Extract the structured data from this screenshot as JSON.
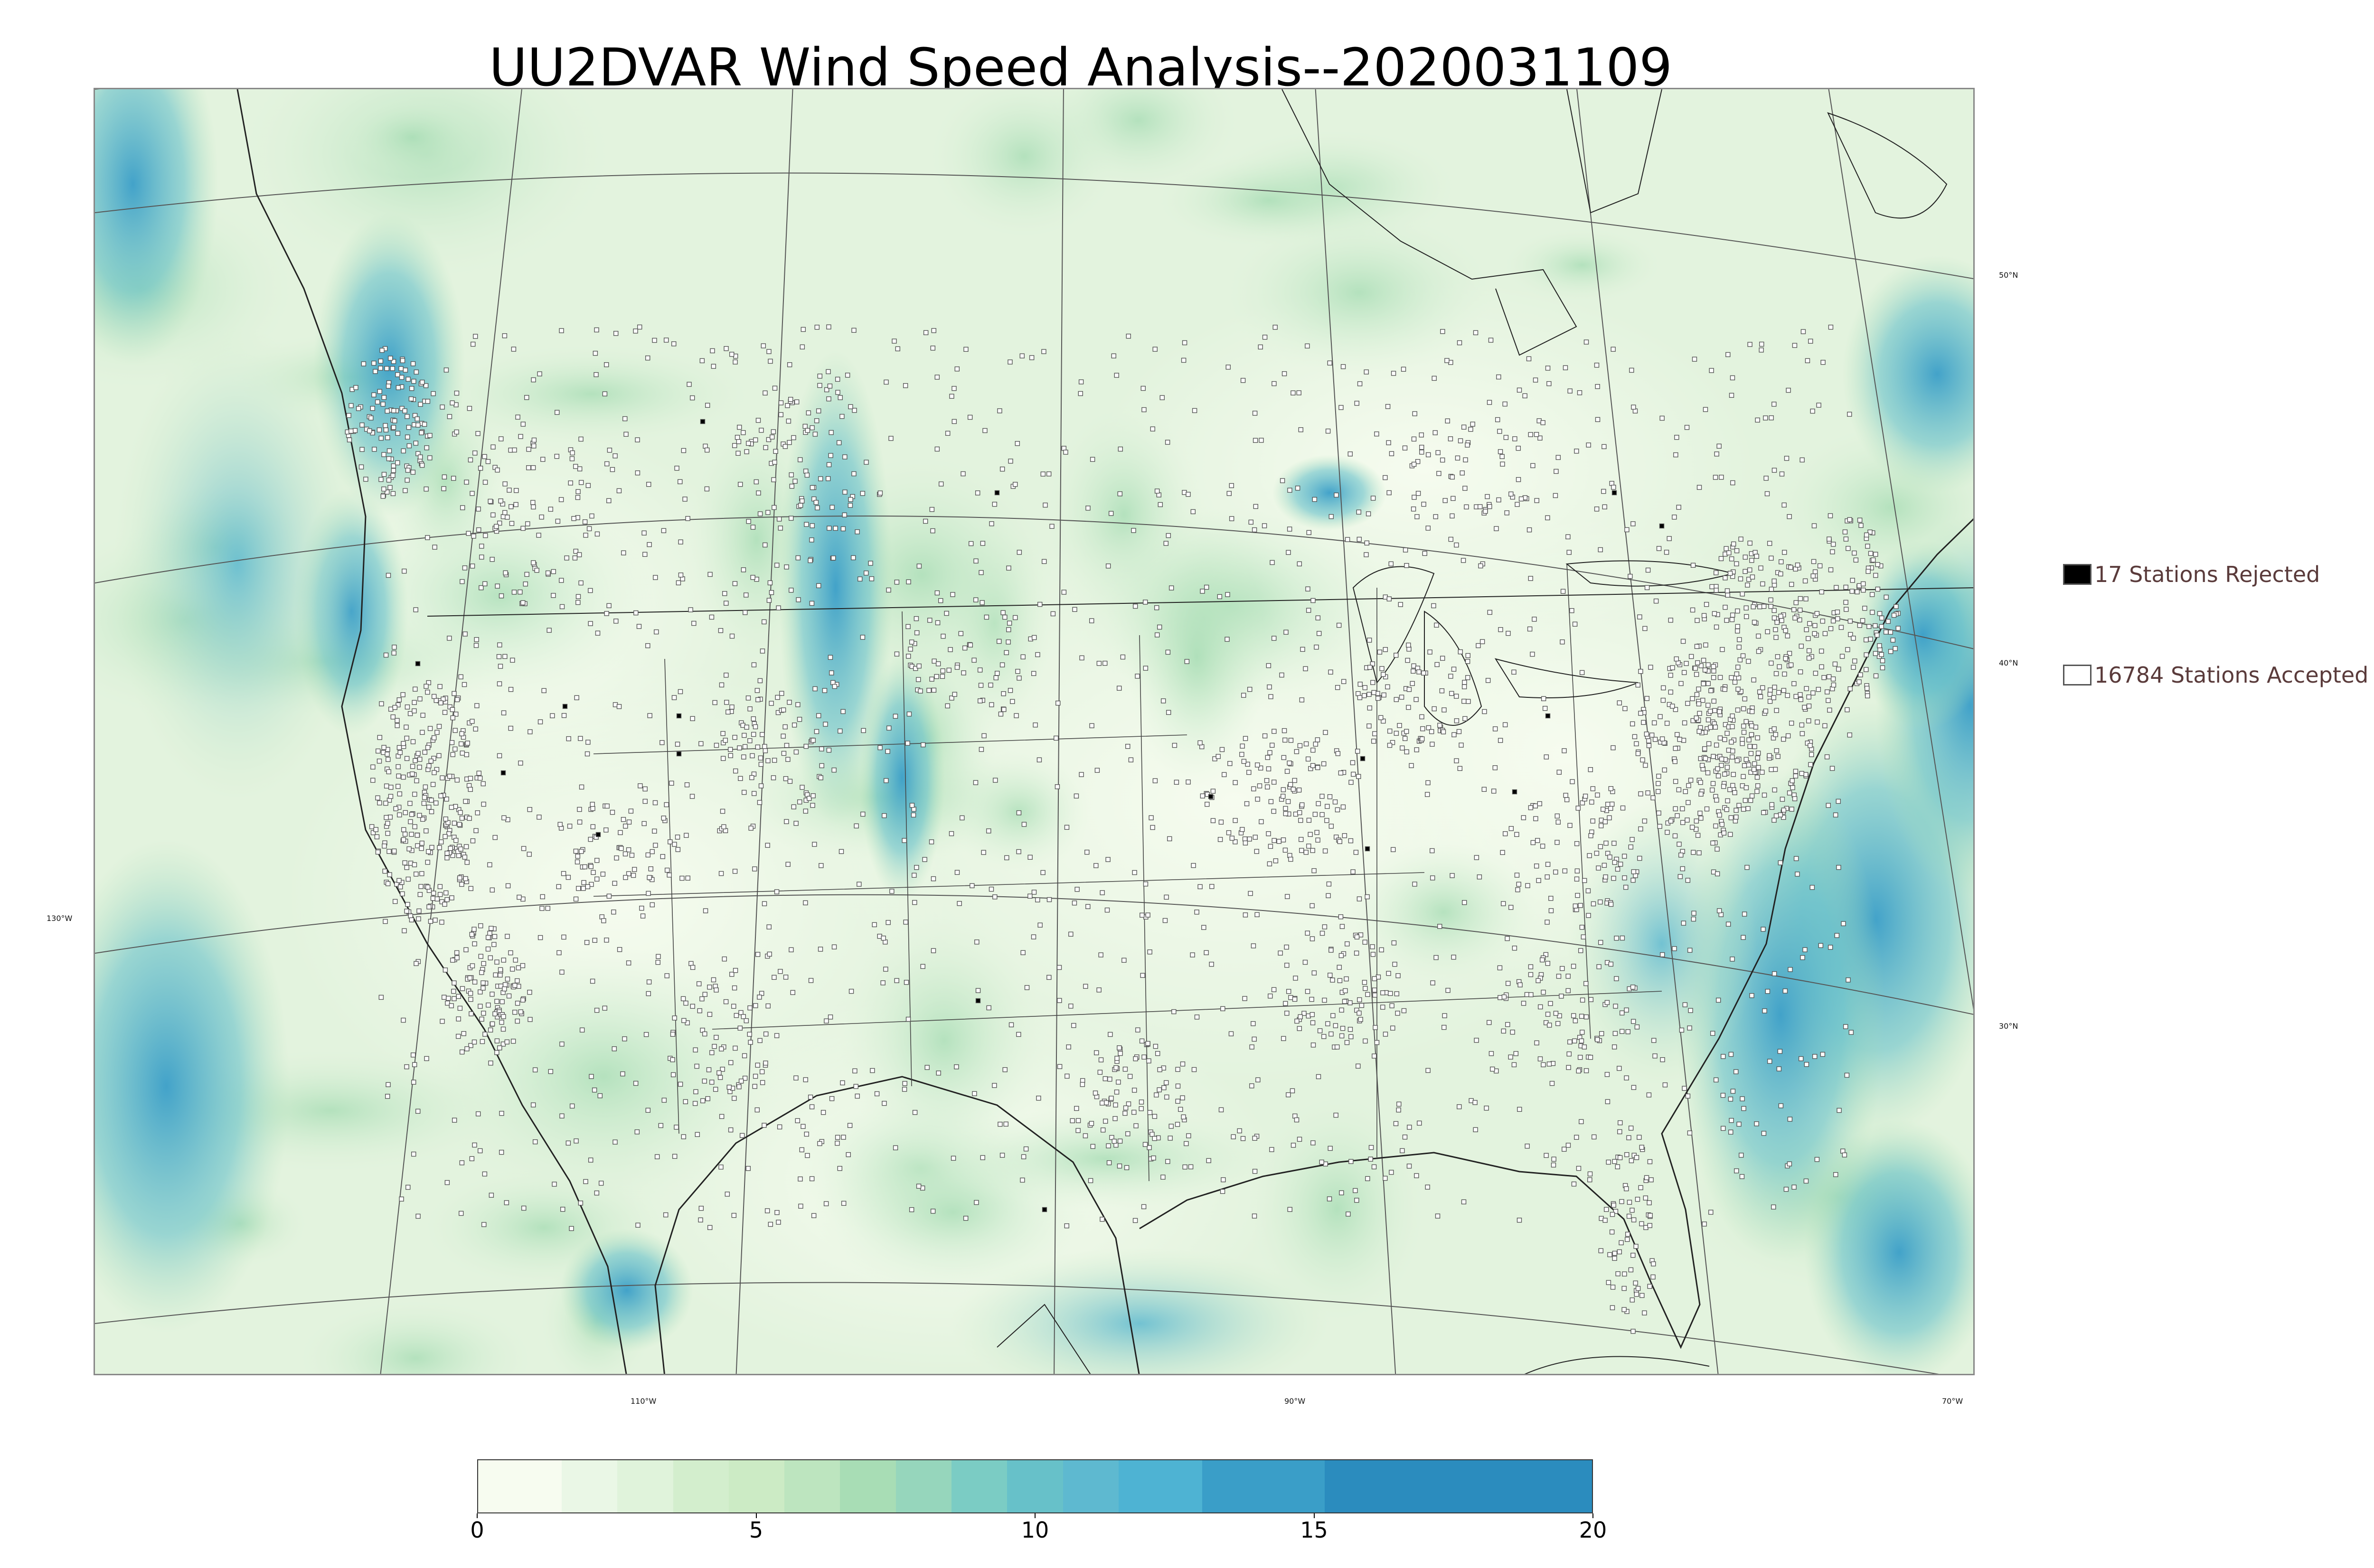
{
  "title": "UU2DVAR Wind Speed Analysis--2020031109",
  "legend": {
    "rejected": {
      "label": "17 Stations Rejected",
      "color": "#000000"
    },
    "accepted": {
      "label": "16784 Stations Accepted",
      "color": "#ffffff"
    }
  },
  "longitude_labels": [
    "130°W",
    "110°W",
    "90°W",
    "70°W"
  ],
  "latitude_labels": [
    "50°N",
    "40°N",
    "30°N"
  ],
  "colorbar": {
    "ticks": [
      "0",
      "5",
      "10",
      "15",
      "20"
    ],
    "range": [
      0,
      20
    ],
    "colors": [
      "#f7fcf0",
      "#eaf7e6",
      "#e0f3db",
      "#d3eecd",
      "#ccebc5",
      "#bde5bf",
      "#a8ddb5",
      "#96d6bc",
      "#7bccc4",
      "#67c1c9",
      "#5eb9d0",
      "#4eb3d3",
      "#3a9ec8",
      "#2b8cbe",
      "#2171a6"
    ]
  },
  "map_colors": {
    "land": "#e8f5e2",
    "ocean_light": "#dff1dc",
    "high_wind": "#4eb3d3",
    "very_high_wind": "#2b8cbe",
    "border": "#222222"
  }
}
